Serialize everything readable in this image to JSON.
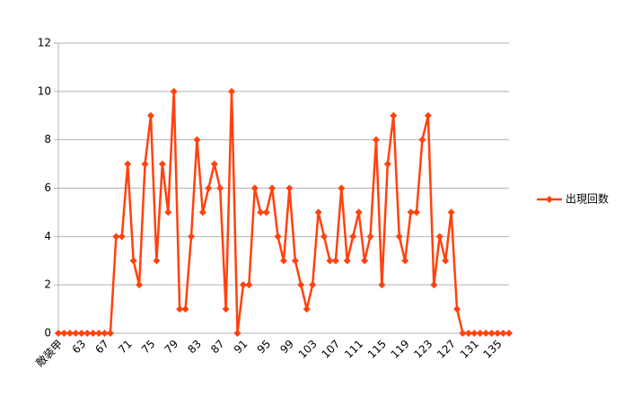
{
  "chart_data": {
    "type": "line",
    "categories": [
      "敵装甲",
      null,
      null,
      null,
      "63",
      null,
      null,
      null,
      "67",
      null,
      null,
      null,
      "71",
      null,
      null,
      null,
      "75",
      null,
      null,
      null,
      "79",
      null,
      null,
      null,
      "83",
      null,
      null,
      null,
      "87",
      null,
      null,
      null,
      "91",
      null,
      null,
      null,
      "95",
      null,
      null,
      null,
      "99",
      null,
      null,
      null,
      "103",
      null,
      null,
      null,
      "107",
      null,
      null,
      null,
      "111",
      null,
      null,
      null,
      "115",
      null,
      null,
      null,
      "119",
      null,
      null,
      null,
      "123",
      null,
      null,
      null,
      "127",
      null,
      null,
      null,
      "131",
      null,
      null,
      null,
      "135",
      null,
      null
    ],
    "series": [
      {
        "name": "出現回数",
        "color": "#ff420e",
        "values": [
          0,
          0,
          0,
          0,
          0,
          0,
          0,
          0,
          0,
          0,
          4,
          4,
          7,
          3,
          2,
          7,
          9,
          3,
          7,
          5,
          10,
          1,
          1,
          4,
          8,
          5,
          6,
          7,
          6,
          1,
          10,
          0,
          2,
          2,
          6,
          5,
          5,
          6,
          4,
          3,
          6,
          3,
          2,
          1,
          2,
          5,
          4,
          3,
          3,
          6,
          3,
          4,
          5,
          3,
          4,
          8,
          2,
          7,
          9,
          4,
          3,
          5,
          5,
          8,
          9,
          2,
          4,
          3,
          5,
          1,
          0,
          0,
          0,
          0,
          0,
          0,
          0,
          0,
          0
        ]
      }
    ],
    "ylim": [
      0,
      12
    ],
    "yticks": [
      0,
      2,
      4,
      6,
      8,
      10,
      12
    ],
    "grid": true,
    "legend": "right"
  }
}
